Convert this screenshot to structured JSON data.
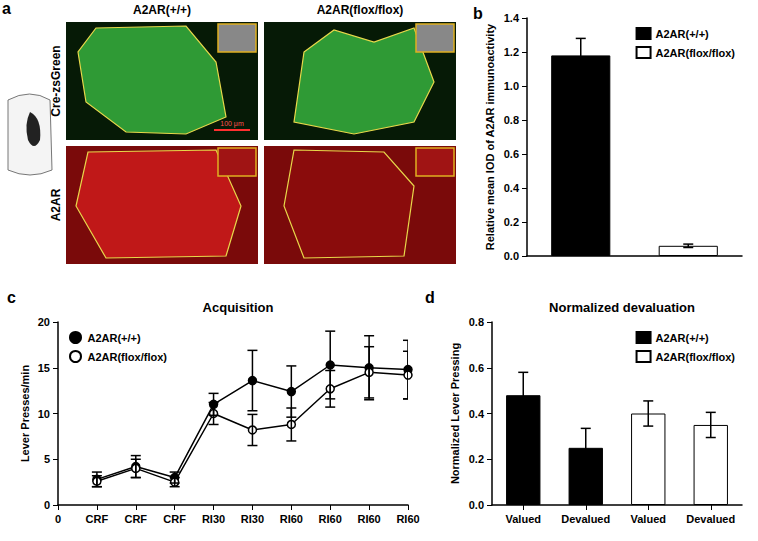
{
  "panel_a": {
    "panel": "a",
    "columns": [
      "A2AR(+/+)",
      "A2AR(flox/flox)"
    ],
    "rows": [
      "Cre-zsGreen",
      "A2AR"
    ],
    "scale_bar": "100 μm"
  },
  "chart_data": [
    {
      "panel": "b",
      "type": "bar",
      "y_label": "Relative mean IOD of A2AR immunoactivity",
      "categories": [
        null,
        null
      ],
      "series": [
        {
          "name": "A2AR(+/+)",
          "color": "#000000",
          "values": [
            1.18,
            null
          ],
          "errors": [
            0.1,
            null
          ]
        },
        {
          "name": "A2AR(flox/flox)",
          "color": "#ffffff",
          "values": [
            null,
            0.06
          ],
          "errors": [
            null,
            0.01
          ]
        }
      ],
      "ylim": [
        0,
        1.4
      ],
      "yticks": [
        {
          "value": 0,
          "label": "0.0"
        },
        0.2,
        0.4,
        0.6,
        0.8,
        {
          "value": 1,
          "label": "1.0"
        },
        1.2,
        1.4
      ],
      "grid": false,
      "legend": "upper right",
      "tick_labels": "y"
    },
    {
      "panel": "c",
      "type": "line",
      "title": "Acquisition",
      "y_label": "Lever Presses/min",
      "categories": [
        "0",
        "CRF",
        "CRF",
        "CRF",
        "RI30",
        "RI30",
        "RI60",
        "RI60",
        "RI60",
        "RI60"
      ],
      "series": [
        {
          "name": "A2AR(+/+)",
          "color": "#000000",
          "marker": "circle",
          "line_style": "solid",
          "values": [
            null,
            2.8,
            4.2,
            3.0,
            11.0,
            13.6,
            12.4,
            15.3,
            15.0,
            14.8
          ],
          "errors": [
            null,
            0.8,
            1.2,
            0.6,
            1.2,
            3.3,
            2.8,
            3.7,
            3.5,
            3.2
          ]
        },
        {
          "name": "A2AR(flox/flox)",
          "color": "#ffffff",
          "marker": "circle",
          "line_style": "solid",
          "values": [
            null,
            2.6,
            4.0,
            2.5,
            10.0,
            8.2,
            8.8,
            12.7,
            14.5,
            14.2
          ],
          "errors": [
            null,
            0.6,
            1.0,
            0.5,
            1.2,
            1.7,
            1.8,
            2.0,
            2.8,
            2.6
          ]
        }
      ],
      "ylim": [
        0,
        20
      ],
      "yticks": [
        0,
        5,
        10,
        15,
        20
      ],
      "grid": false,
      "legend": "upper left"
    },
    {
      "panel": "d",
      "type": "bar",
      "title": "Normalized devaluation",
      "y_label": "Normalized Lever Pressing",
      "categories": [
        "Valued",
        "Devalued",
        "Valued",
        "Devalued"
      ],
      "series": [
        {
          "name": "A2AR(+/+)",
          "color": "#000000",
          "values": [
            0.48,
            0.25,
            null,
            null
          ],
          "errors": [
            0.1,
            0.085,
            null,
            null
          ]
        },
        {
          "name": "A2AR(flox/flox)",
          "color": "#ffffff",
          "values": [
            null,
            null,
            0.4,
            0.35
          ],
          "errors": [
            null,
            null,
            0.055,
            0.055
          ]
        }
      ],
      "ylim": [
        0,
        0.8
      ],
      "yticks": [
        {
          "value": 0,
          "label": "0.0"
        },
        0.2,
        0.4,
        0.6,
        0.8
      ],
      "grid": false,
      "legend": "upper right"
    }
  ]
}
